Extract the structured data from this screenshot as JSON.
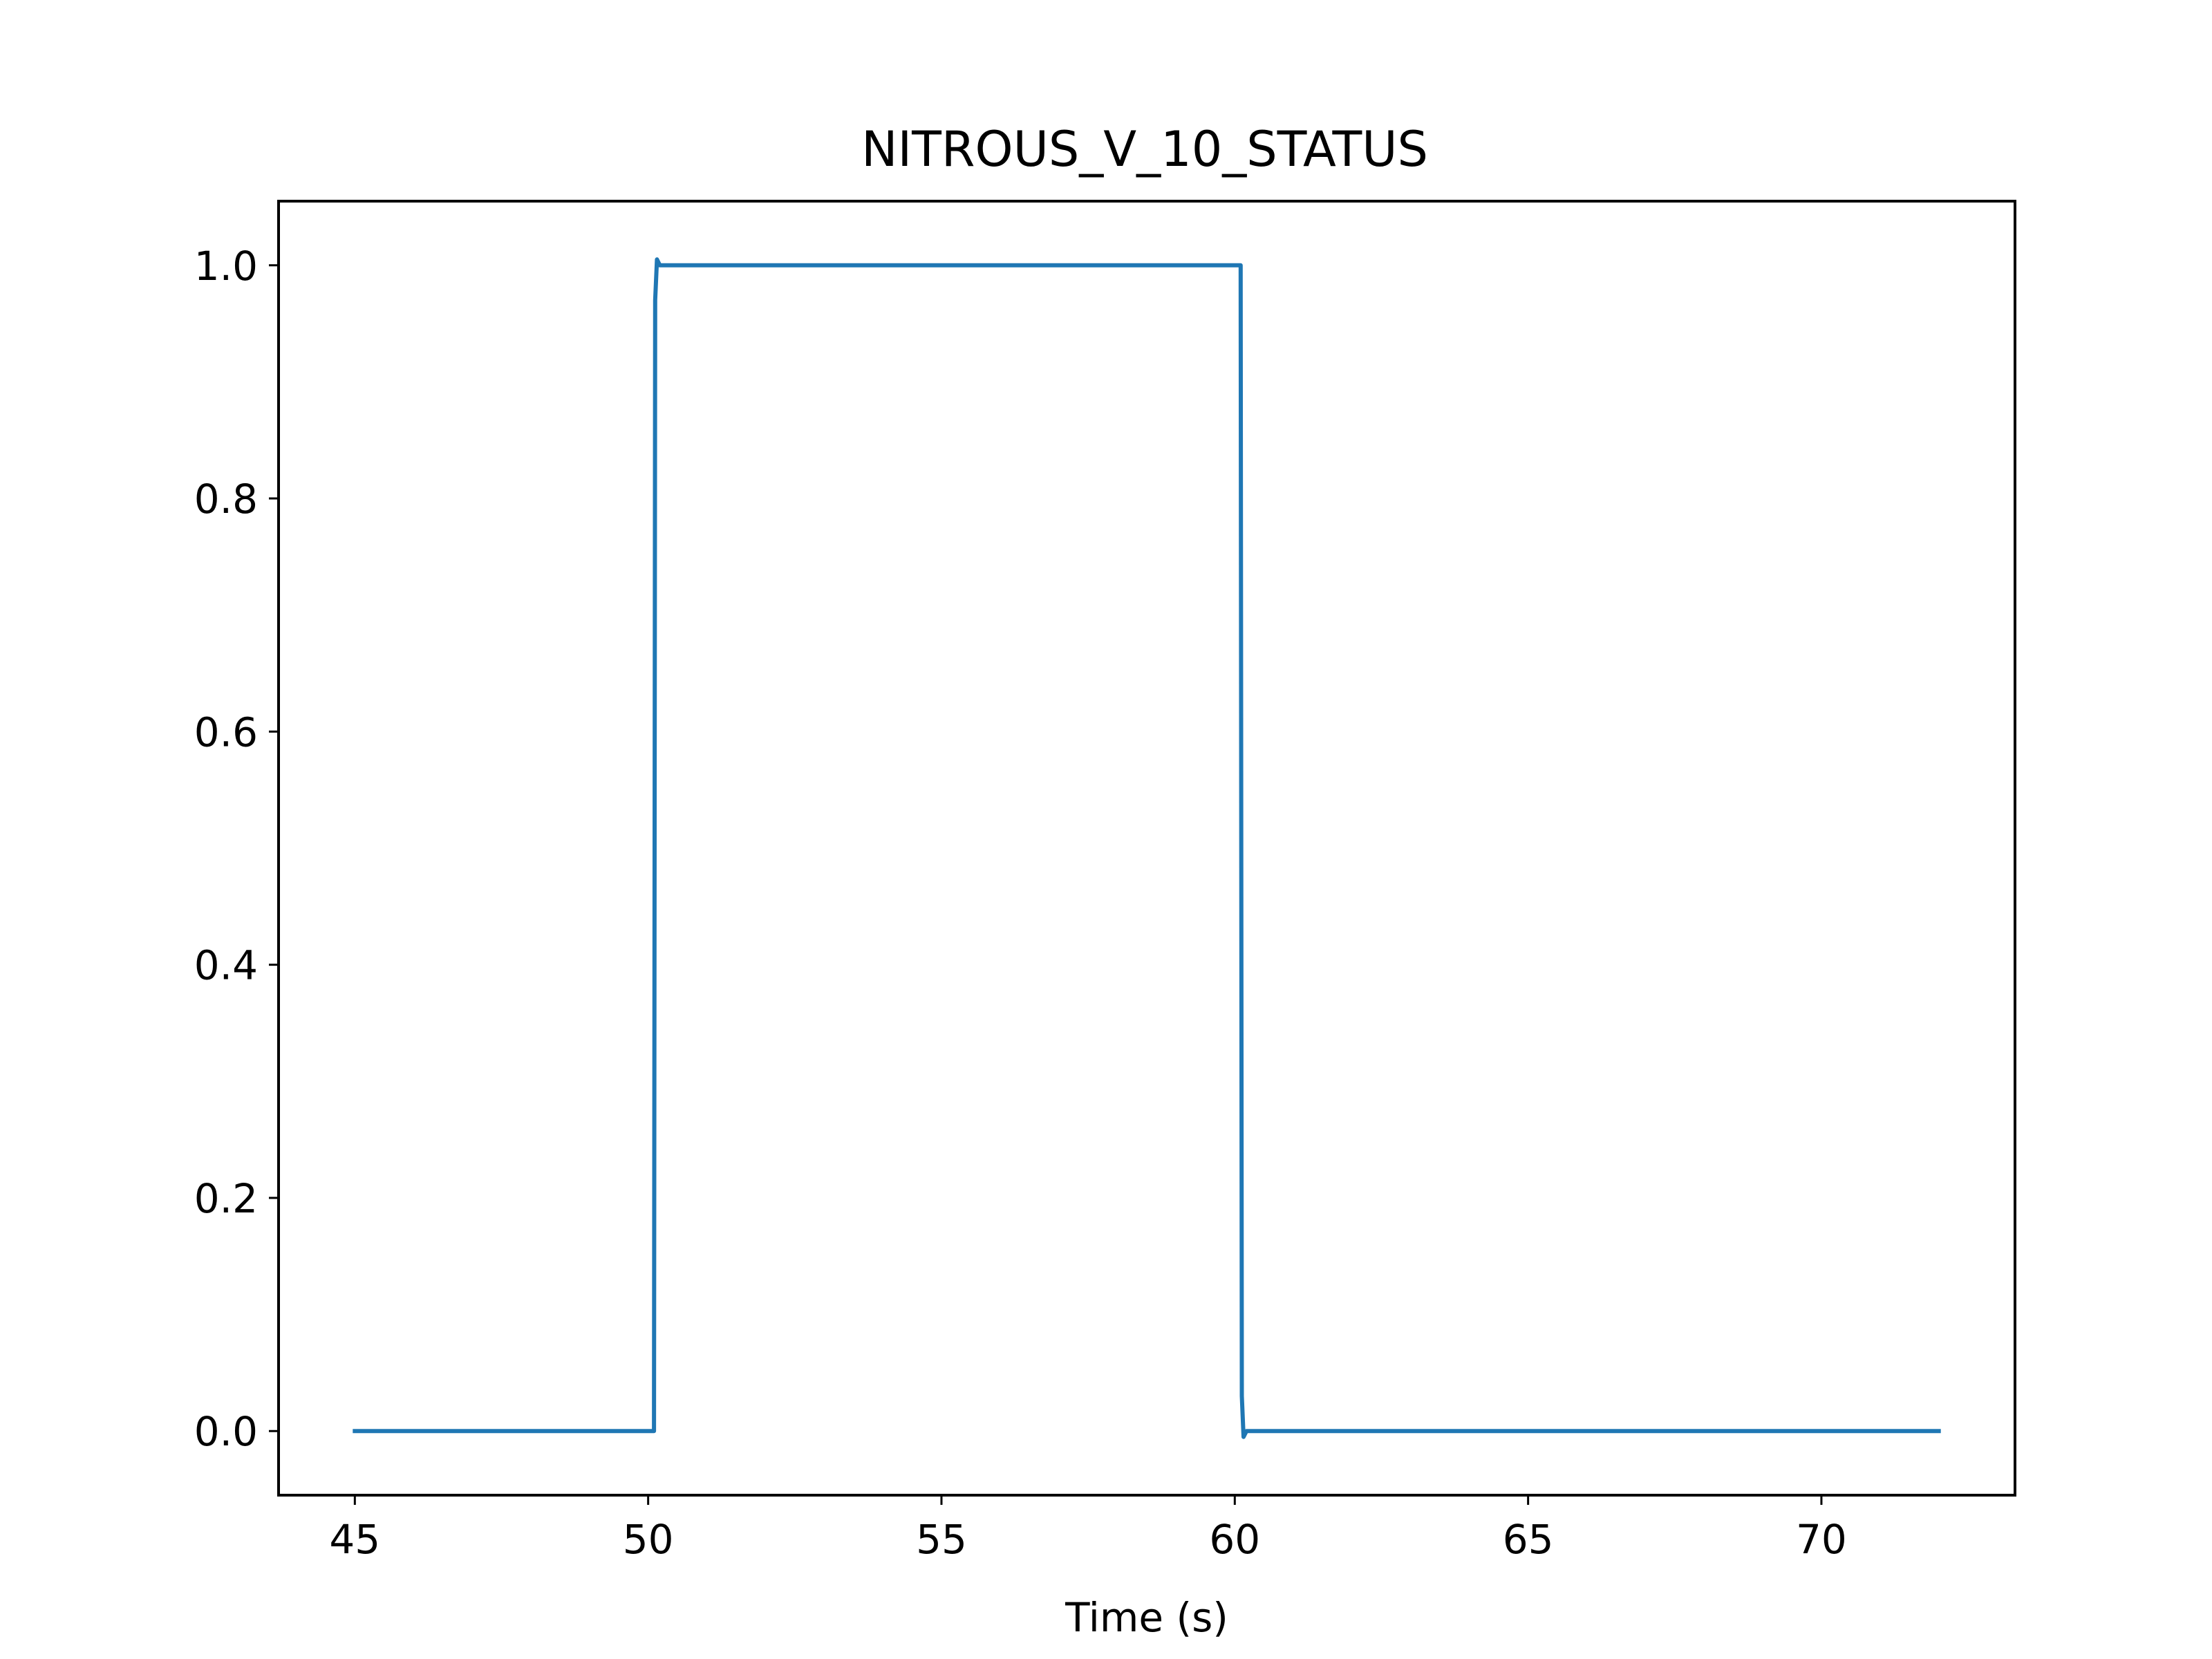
{
  "chart_data": {
    "type": "line",
    "title": "NITROUS_V_10_STATUS",
    "xlabel": "Time (s)",
    "ylabel": "",
    "xlim": [
      43.7,
      73.3
    ],
    "ylim": [
      -0.055,
      1.055
    ],
    "grid": false,
    "colors": {
      "series": "#1f77b4",
      "axes": "#000000"
    },
    "x_ticks": [
      45,
      50,
      55,
      60,
      65,
      70
    ],
    "x_tick_labels": [
      "45",
      "50",
      "55",
      "60",
      "65",
      "70"
    ],
    "y_ticks": [
      0.0,
      0.2,
      0.4,
      0.6,
      0.8,
      1.0
    ],
    "y_tick_labels": [
      "0.0",
      "0.2",
      "0.4",
      "0.6",
      "0.8",
      "1.0"
    ],
    "series": [
      {
        "x": [
          45.0,
          50.1,
          50.12,
          50.15,
          50.2,
          60.1,
          60.12,
          60.15,
          60.2,
          72.0
        ],
        "y": [
          0.0,
          0.0,
          0.97,
          1.005,
          1.0,
          1.0,
          0.03,
          -0.005,
          0.0,
          0.0
        ]
      }
    ]
  }
}
